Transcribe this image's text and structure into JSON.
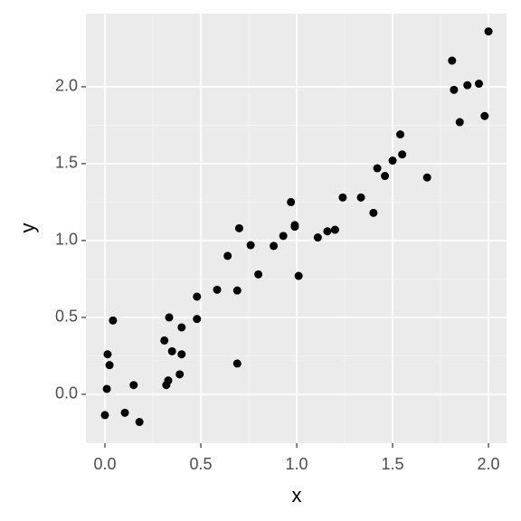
{
  "chart_data": {
    "type": "scatter",
    "x_label": "x",
    "y_label": "y",
    "x": [
      0.0,
      0.01,
      0.014,
      0.024,
      0.042,
      0.104,
      0.15,
      0.18,
      0.31,
      0.32,
      0.33,
      0.335,
      0.35,
      0.39,
      0.4,
      0.4,
      0.48,
      0.48,
      0.585,
      0.64,
      0.69,
      0.69,
      0.7,
      0.76,
      0.8,
      0.88,
      0.93,
      0.97,
      0.99,
      0.99,
      1.01,
      1.11,
      1.16,
      1.2,
      1.24,
      1.335,
      1.4,
      1.42,
      1.46,
      1.5,
      1.54,
      1.55,
      1.68,
      1.81,
      1.82,
      1.85,
      1.89,
      1.95,
      1.98,
      2.0
    ],
    "y": [
      -0.135,
      0.035,
      0.26,
      0.19,
      0.48,
      -0.12,
      0.06,
      -0.18,
      0.35,
      0.06,
      0.09,
      0.5,
      0.28,
      0.13,
      0.26,
      0.435,
      0.49,
      0.635,
      0.68,
      0.9,
      0.2,
      0.675,
      1.08,
      0.97,
      0.78,
      0.965,
      1.03,
      1.25,
      1.1,
      1.09,
      0.77,
      1.02,
      1.06,
      1.07,
      1.28,
      1.28,
      1.18,
      1.47,
      1.42,
      1.52,
      1.69,
      1.56,
      1.41,
      2.17,
      1.98,
      1.77,
      2.01,
      2.02,
      1.81,
      2.36
    ],
    "color": "#000000",
    "xlim": [
      -0.099,
      2.094
    ],
    "ylim": [
      -0.318,
      2.476
    ],
    "xticks": [
      {
        "value": 0,
        "label": "0.0"
      },
      {
        "value": 0.5,
        "label": "0.5"
      },
      {
        "value": 1,
        "label": "1.0"
      },
      {
        "value": 1.5,
        "label": "1.5"
      },
      {
        "value": 2,
        "label": "2.0"
      }
    ],
    "yticks": [
      {
        "value": 0,
        "label": "0.0"
      },
      {
        "value": 0.5,
        "label": "0.5"
      },
      {
        "value": 1,
        "label": "1.0"
      },
      {
        "value": 1.5,
        "label": "1.5"
      },
      {
        "value": 2,
        "label": "2.0"
      }
    ],
    "grid": true
  }
}
